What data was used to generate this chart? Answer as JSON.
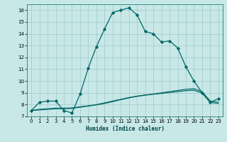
{
  "xlabel": "Humidex (Indice chaleur)",
  "bg_color": "#c8e8e8",
  "grid_color": "#a0c8c8",
  "line_color": "#006666",
  "xlim": [
    -0.5,
    23.5
  ],
  "ylim": [
    7,
    16.5
  ],
  "xticks": [
    0,
    1,
    2,
    3,
    4,
    5,
    6,
    7,
    8,
    9,
    10,
    11,
    12,
    13,
    14,
    15,
    16,
    17,
    18,
    19,
    20,
    21,
    22,
    23
  ],
  "yticks": [
    7,
    8,
    9,
    10,
    11,
    12,
    13,
    14,
    15,
    16
  ],
  "line1_x": [
    0,
    1,
    2,
    3,
    4,
    5,
    6,
    7,
    8,
    9,
    10,
    11,
    12,
    13,
    14,
    15,
    16,
    17,
    18,
    19,
    20,
    21,
    22,
    23
  ],
  "line1_y": [
    7.5,
    8.2,
    8.3,
    8.3,
    7.5,
    7.3,
    8.9,
    11.1,
    12.9,
    14.4,
    15.8,
    16.0,
    16.2,
    15.6,
    14.2,
    14.0,
    13.3,
    13.4,
    12.8,
    11.2,
    10.0,
    9.0,
    8.2,
    8.5
  ],
  "line2_x": [
    0,
    1,
    2,
    3,
    4,
    5,
    6,
    7,
    8,
    9,
    10,
    11,
    12,
    13,
    14,
    15,
    16,
    17,
    18,
    19,
    20,
    21,
    22,
    23
  ],
  "line2_y": [
    7.5,
    7.6,
    7.65,
    7.7,
    7.7,
    7.72,
    7.82,
    7.9,
    8.0,
    8.15,
    8.3,
    8.45,
    8.6,
    8.72,
    8.82,
    8.9,
    9.0,
    9.1,
    9.2,
    9.3,
    9.35,
    9.1,
    8.3,
    8.2
  ],
  "line3_x": [
    0,
    1,
    2,
    3,
    4,
    5,
    6,
    7,
    8,
    9,
    10,
    11,
    12,
    13,
    14,
    15,
    16,
    17,
    18,
    19,
    20,
    21,
    22,
    23
  ],
  "line3_y": [
    7.5,
    7.55,
    7.6,
    7.65,
    7.65,
    7.68,
    7.78,
    7.88,
    7.98,
    8.1,
    8.25,
    8.42,
    8.57,
    8.7,
    8.8,
    8.88,
    8.95,
    9.03,
    9.1,
    9.18,
    9.22,
    8.98,
    8.18,
    8.1
  ]
}
